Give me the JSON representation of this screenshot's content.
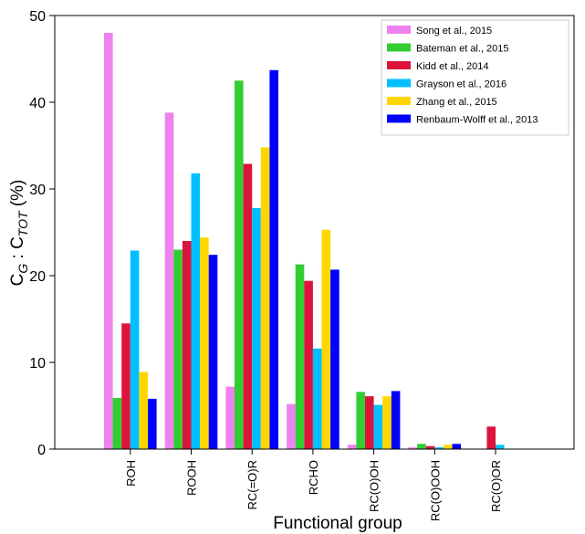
{
  "chart_data": {
    "type": "bar",
    "xlabel": "Functional group",
    "ylabel_main": "C",
    "ylabel_sub1": "G",
    "ylabel_mid": " : C",
    "ylabel_sub2": "TOT",
    "ylabel_unit": " (%)",
    "ylim": [
      0,
      50
    ],
    "yticks": [
      "0",
      "10",
      "20",
      "30",
      "40",
      "50"
    ],
    "ytick_values": [
      0,
      10,
      20,
      30,
      40,
      50
    ],
    "grid": false,
    "legend_position": "top-right",
    "categories": [
      "ROH",
      "ROOH",
      "RC(=O)R",
      "RCHO",
      "RC(O)OH",
      "RC(O)OOH",
      "RC(O)OR"
    ],
    "series": [
      {
        "name": "Song et al., 2015",
        "color": "#ee82ee",
        "values": [
          48.0,
          38.8,
          7.2,
          5.2,
          0.5,
          0.2,
          0
        ]
      },
      {
        "name": "Bateman et al., 2015",
        "color": "#32cd32",
        "values": [
          5.9,
          23.0,
          42.5,
          21.3,
          6.6,
          0.6,
          0
        ]
      },
      {
        "name": "Kidd et al., 2014",
        "color": "#dc143c",
        "values": [
          14.5,
          24.0,
          32.9,
          19.4,
          6.1,
          0.35,
          2.6
        ]
      },
      {
        "name": "Grayson et al., 2016",
        "color": "#00bfff",
        "values": [
          22.9,
          31.8,
          27.8,
          11.6,
          5.1,
          0.2,
          0.5
        ]
      },
      {
        "name": "Zhang et al., 2015",
        "color": "#ffd700",
        "values": [
          8.9,
          24.4,
          34.8,
          25.3,
          6.1,
          0.5,
          0
        ]
      },
      {
        "name": "Renbaum-Wolff et al., 2013",
        "color": "#0000ff",
        "values": [
          5.8,
          22.4,
          43.7,
          20.7,
          6.7,
          0.6,
          0
        ]
      }
    ]
  }
}
